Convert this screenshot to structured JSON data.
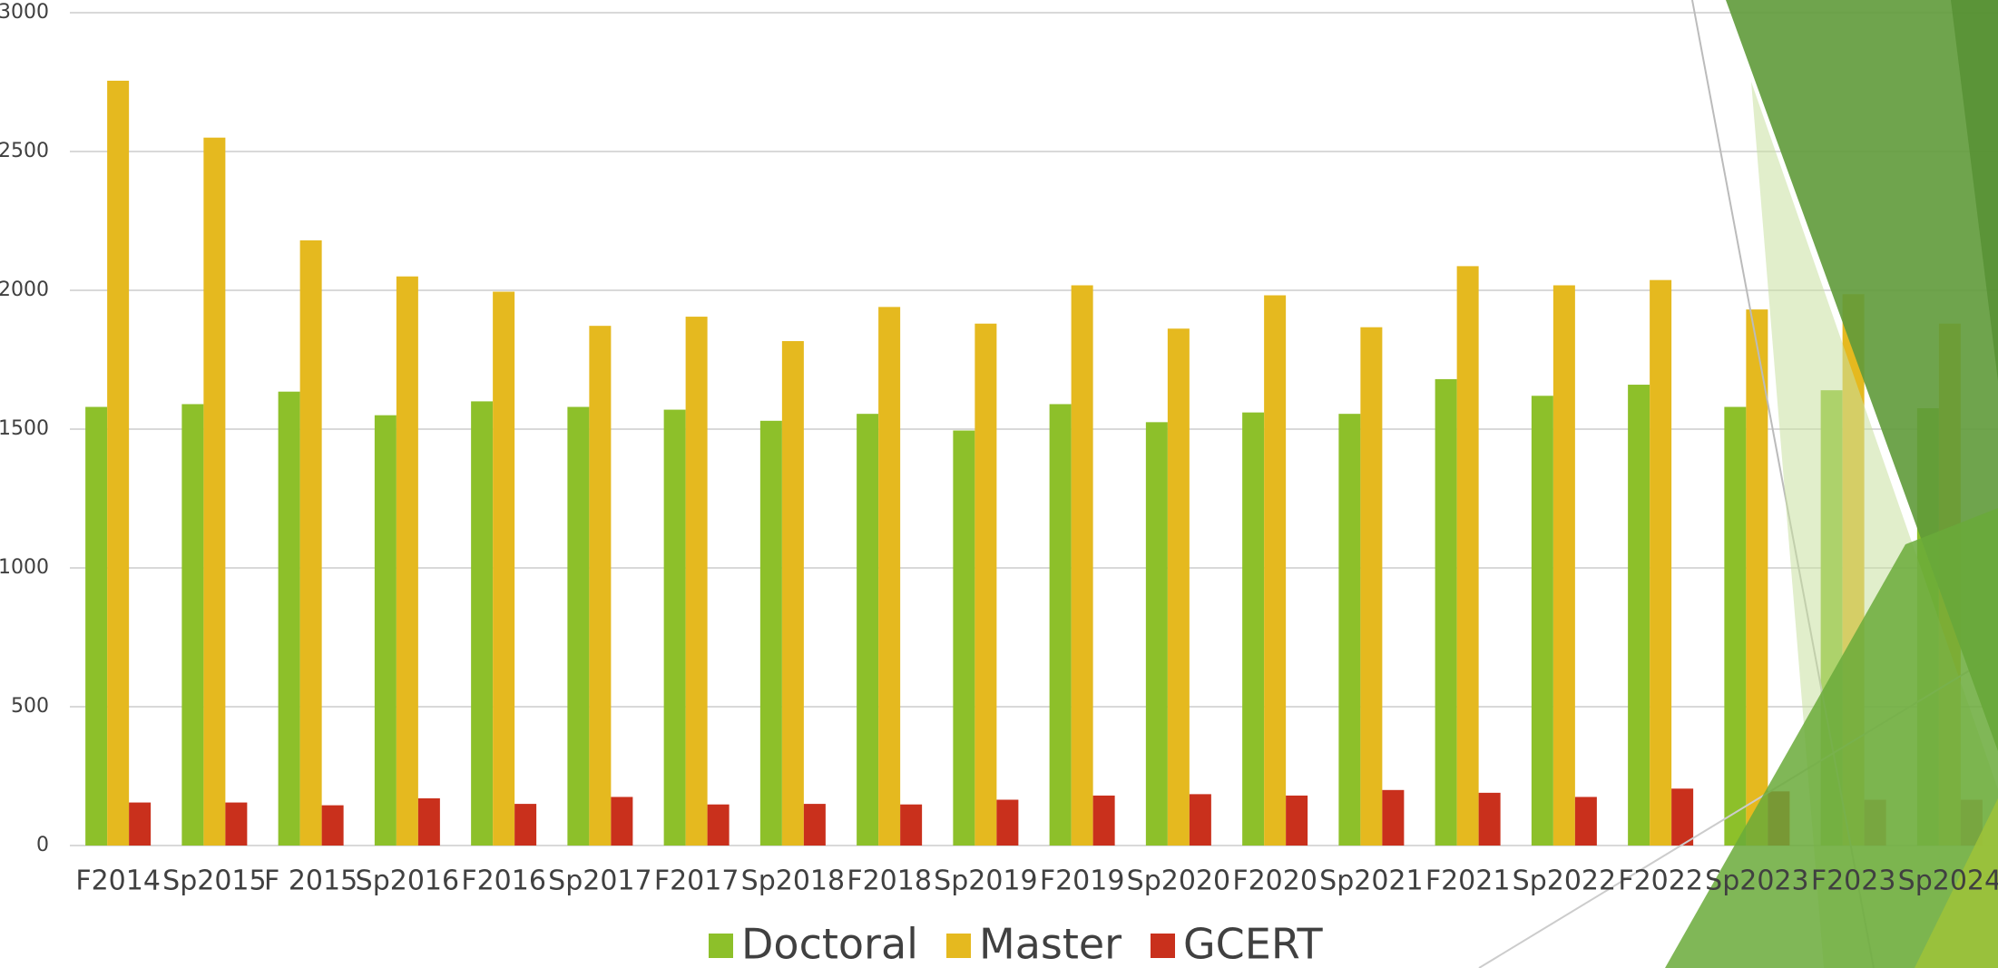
{
  "chart_data": {
    "type": "bar",
    "categories": [
      "F2014",
      "Sp2015",
      "F 2015",
      "Sp2016",
      "F2016",
      "Sp2017",
      "F2017",
      "Sp2018",
      "F2018",
      "Sp2019",
      "F2019",
      "Sp2020",
      "F2020",
      "Sp2021",
      "F2021",
      "Sp2022",
      "F2022",
      "Sp2023",
      "F2023",
      "Sp2024"
    ],
    "series": [
      {
        "name": "Doctoral",
        "color": "#8dc02a",
        "values": [
          1580,
          1590,
          1635,
          1550,
          1600,
          1580,
          1570,
          1530,
          1555,
          1495,
          1590,
          1525,
          1560,
          1555,
          1680,
          1620,
          1660,
          1580,
          1640,
          1575
        ]
      },
      {
        "name": "Master",
        "color": "#e5b91f",
        "values": [
          2755,
          2550,
          2180,
          2050,
          1995,
          1872,
          1905,
          1817,
          1940,
          1880,
          2018,
          1862,
          1982,
          1867,
          2087,
          2018,
          2037,
          1931,
          1986,
          1880
        ]
      },
      {
        "name": "GCERT",
        "color": "#c9301c",
        "values": [
          155,
          155,
          145,
          170,
          150,
          175,
          148,
          150,
          148,
          165,
          180,
          185,
          180,
          200,
          190,
          175,
          205,
          195,
          165,
          165
        ]
      }
    ],
    "ylim": [
      0,
      3000
    ],
    "yticks": [
      0,
      500,
      1000,
      1500,
      2000,
      2500,
      3000
    ],
    "grid": true,
    "legend": "bottom"
  }
}
